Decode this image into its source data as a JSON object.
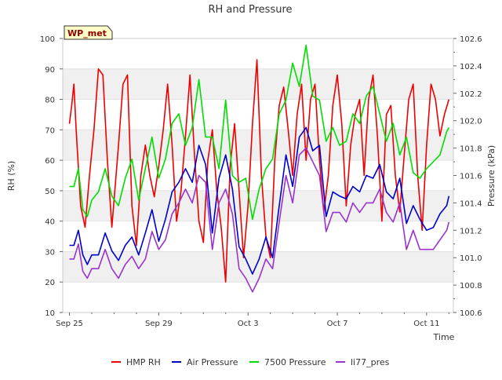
{
  "chart_data": {
    "type": "line",
    "title": "RH and Pressure",
    "badge": "WP_met",
    "xlabel": "Time",
    "ylabel": "RH (%)",
    "ylabel_right": "Pressure (kPa)",
    "xlim": [
      -0.3,
      17.2
    ],
    "ylim": [
      10,
      100
    ],
    "ylim_right": [
      100.6,
      102.6
    ],
    "x_ticks": [
      {
        "x": 0,
        "label": "Sep 25"
      },
      {
        "x": 4,
        "label": "Sep 29"
      },
      {
        "x": 8,
        "label": "Oct 3"
      },
      {
        "x": 12,
        "label": "Oct 7"
      },
      {
        "x": 16,
        "label": "Oct 11"
      }
    ],
    "y_ticks": [
      10,
      20,
      30,
      40,
      50,
      60,
      70,
      80,
      90,
      100
    ],
    "y_ticks_right": [
      "100.6",
      "100.8",
      "101.0",
      "101.2",
      "101.4",
      "101.6",
      "101.8",
      "102.0",
      "102.2",
      "102.4",
      "102.6"
    ],
    "grid": "horizontal bands",
    "legend_position": "bottom",
    "series": [
      {
        "name": "HMP RH",
        "axis": "left",
        "color": "#ee0000",
        "x": [
          0.0,
          0.1,
          0.2,
          0.3,
          0.5,
          0.7,
          0.9,
          1.1,
          1.3,
          1.5,
          1.7,
          1.9,
          2.2,
          2.4,
          2.6,
          2.8,
          3.0,
          3.2,
          3.4,
          3.6,
          3.8,
          4.0,
          4.2,
          4.4,
          4.6,
          4.8,
          5.0,
          5.2,
          5.4,
          5.6,
          5.8,
          6.0,
          6.2,
          6.4,
          6.6,
          6.8,
          7.0,
          7.2,
          7.4,
          7.6,
          7.8,
          8.0,
          8.2,
          8.4,
          8.6,
          8.8,
          9.0,
          9.2,
          9.4,
          9.6,
          9.8,
          10.0,
          10.2,
          10.4,
          10.6,
          10.8,
          11.0,
          11.2,
          11.4,
          11.6,
          11.8,
          12.0,
          12.2,
          12.4,
          12.6,
          12.8,
          13.0,
          13.2,
          13.4,
          13.6,
          13.8,
          14.0,
          14.2,
          14.4,
          14.6,
          14.8,
          15.0,
          15.2,
          15.4,
          15.6,
          15.8,
          16.0,
          16.2,
          16.4,
          16.6,
          16.8,
          17.0
        ],
        "values": [
          72,
          78,
          85,
          70,
          45,
          38,
          55,
          70,
          90,
          88,
          60,
          38,
          65,
          85,
          88,
          45,
          32,
          55,
          65,
          55,
          48,
          58,
          70,
          85,
          65,
          40,
          50,
          68,
          88,
          62,
          40,
          33,
          60,
          70,
          50,
          38,
          20,
          58,
          72,
          50,
          28,
          45,
          72,
          93,
          55,
          35,
          28,
          60,
          78,
          84,
          70,
          55,
          75,
          85,
          60,
          80,
          85,
          60,
          43,
          55,
          78,
          88,
          72,
          45,
          65,
          75,
          80,
          55,
          80,
          88,
          68,
          40,
          75,
          78,
          55,
          43,
          62,
          80,
          85,
          55,
          37,
          65,
          85,
          80,
          68,
          75,
          80
        ]
      },
      {
        "name": "Air Pressure",
        "axis": "right",
        "color": "#0000cc",
        "x": [
          0.0,
          0.2,
          0.4,
          0.6,
          0.8,
          1.0,
          1.3,
          1.6,
          1.9,
          2.2,
          2.5,
          2.8,
          3.1,
          3.4,
          3.7,
          4.0,
          4.3,
          4.6,
          4.9,
          5.2,
          5.5,
          5.8,
          6.1,
          6.4,
          6.7,
          7.0,
          7.3,
          7.6,
          7.9,
          8.2,
          8.5,
          8.8,
          9.1,
          9.4,
          9.7,
          10.0,
          10.3,
          10.6,
          10.9,
          11.2,
          11.5,
          11.8,
          12.1,
          12.4,
          12.7,
          13.0,
          13.3,
          13.6,
          13.9,
          14.2,
          14.5,
          14.8,
          15.1,
          15.4,
          15.7,
          16.0,
          16.3,
          16.6,
          16.9,
          17.0
        ],
        "values": [
          101.09,
          101.09,
          101.2,
          101.02,
          100.95,
          101.02,
          101.02,
          101.18,
          101.05,
          100.98,
          101.09,
          101.15,
          101.02,
          101.18,
          101.35,
          101.12,
          101.28,
          101.48,
          101.55,
          101.65,
          101.55,
          101.82,
          101.68,
          101.18,
          101.58,
          101.75,
          101.5,
          101.08,
          100.99,
          100.88,
          100.99,
          101.15,
          101.0,
          101.38,
          101.75,
          101.52,
          101.88,
          101.95,
          101.78,
          101.82,
          101.3,
          101.48,
          101.45,
          101.43,
          101.52,
          101.48,
          101.6,
          101.58,
          101.68,
          101.48,
          101.43,
          101.58,
          101.25,
          101.38,
          101.28,
          101.2,
          101.22,
          101.32,
          101.38,
          101.45
        ]
      },
      {
        "name": "7500 Pressure",
        "axis": "right",
        "color": "#00dd00",
        "x": [
          0.0,
          0.2,
          0.4,
          0.6,
          0.8,
          1.0,
          1.3,
          1.6,
          1.9,
          2.2,
          2.5,
          2.8,
          3.1,
          3.4,
          3.7,
          4.0,
          4.3,
          4.6,
          4.9,
          5.2,
          5.5,
          5.8,
          6.1,
          6.4,
          6.7,
          7.0,
          7.3,
          7.6,
          7.9,
          8.2,
          8.5,
          8.8,
          9.1,
          9.4,
          9.7,
          10.0,
          10.3,
          10.6,
          10.9,
          11.2,
          11.5,
          11.8,
          12.1,
          12.4,
          12.7,
          13.0,
          13.3,
          13.6,
          13.9,
          14.2,
          14.5,
          14.8,
          15.1,
          15.4,
          15.7,
          16.0,
          16.3,
          16.6,
          16.9,
          17.0
        ],
        "values": [
          101.52,
          101.52,
          101.65,
          101.35,
          101.3,
          101.42,
          101.48,
          101.65,
          101.45,
          101.38,
          101.58,
          101.72,
          101.42,
          101.65,
          101.88,
          101.58,
          101.72,
          101.98,
          102.05,
          101.82,
          101.95,
          102.3,
          101.88,
          101.88,
          101.65,
          102.15,
          101.6,
          101.55,
          101.58,
          101.28,
          101.5,
          101.65,
          101.72,
          102.05,
          102.15,
          102.42,
          102.25,
          102.55,
          102.18,
          102.15,
          101.85,
          101.95,
          101.82,
          101.85,
          102.05,
          101.98,
          102.18,
          102.25,
          102.05,
          101.85,
          101.98,
          101.75,
          101.88,
          101.62,
          101.58,
          101.65,
          101.7,
          101.75,
          101.92,
          101.95
        ]
      },
      {
        "name": "li77_pres",
        "axis": "right",
        "color": "#9933cc",
        "x": [
          0.0,
          0.2,
          0.4,
          0.6,
          0.8,
          1.0,
          1.3,
          1.6,
          1.9,
          2.2,
          2.5,
          2.8,
          3.1,
          3.4,
          3.7,
          4.0,
          4.3,
          4.6,
          4.9,
          5.2,
          5.5,
          5.8,
          6.1,
          6.4,
          6.7,
          7.0,
          7.3,
          7.6,
          7.9,
          8.2,
          8.5,
          8.8,
          9.1,
          9.4,
          9.7,
          10.0,
          10.3,
          10.6,
          10.9,
          11.2,
          11.5,
          11.8,
          12.1,
          12.4,
          12.7,
          13.0,
          13.3,
          13.6,
          13.9,
          14.2,
          14.5,
          14.8,
          15.1,
          15.4,
          15.7,
          16.0,
          16.3,
          16.6,
          16.9,
          17.0
        ],
        "values": [
          100.99,
          100.99,
          101.1,
          100.9,
          100.85,
          100.92,
          100.92,
          101.06,
          100.92,
          100.85,
          100.95,
          101.01,
          100.92,
          100.99,
          101.19,
          101.06,
          101.13,
          101.32,
          101.4,
          101.5,
          101.4,
          101.6,
          101.55,
          101.06,
          101.4,
          101.5,
          101.32,
          100.92,
          100.85,
          100.75,
          100.85,
          100.99,
          100.92,
          101.26,
          101.6,
          101.4,
          101.75,
          101.8,
          101.7,
          101.6,
          101.19,
          101.33,
          101.33,
          101.26,
          101.4,
          101.33,
          101.4,
          101.4,
          101.5,
          101.33,
          101.26,
          101.4,
          101.06,
          101.2,
          101.06,
          101.06,
          101.06,
          101.13,
          101.2,
          101.26
        ]
      }
    ]
  }
}
